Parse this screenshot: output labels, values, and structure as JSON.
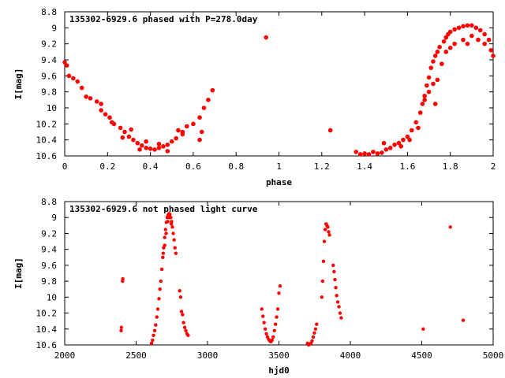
{
  "chart_data": [
    {
      "type": "scatter",
      "title": "135302-6929.6 phased with P=278.0day",
      "xlabel": "phase",
      "ylabel": "I[mag]",
      "xlim": [
        0,
        2
      ],
      "ylim": [
        8.8,
        10.6
      ],
      "y_inverted": true,
      "grid": false,
      "marker_color": "#ff0000",
      "marker": "filled-circle-cluster",
      "x_ticks": [
        0,
        0.2,
        0.4,
        0.6,
        0.8,
        1,
        1.2,
        1.4,
        1.6,
        1.8,
        2
      ],
      "x_tick_labels": [
        "0",
        "0.2",
        "0.4",
        "0.6",
        "0.8",
        "1",
        "1.2",
        "1.4",
        "1.6",
        "1.8",
        "2"
      ],
      "y_ticks": [
        8.8,
        9,
        9.2,
        9.4,
        9.6,
        9.8,
        10,
        10.2,
        10.4,
        10.6
      ],
      "y_tick_labels": [
        "8.8",
        "9",
        "9.2",
        "9.4",
        "9.6",
        "9.8",
        "10",
        "10.2",
        "10.4",
        "10.6"
      ],
      "points": [
        [
          0.0,
          9.43
        ],
        [
          0.01,
          9.47
        ],
        [
          0.02,
          9.6
        ],
        [
          0.04,
          9.63
        ],
        [
          0.06,
          9.67
        ],
        [
          0.08,
          9.75
        ],
        [
          0.1,
          9.86
        ],
        [
          0.12,
          9.88
        ],
        [
          0.15,
          9.92
        ],
        [
          0.17,
          10.03
        ],
        [
          0.19,
          10.08
        ],
        [
          0.21,
          10.12
        ],
        [
          0.23,
          10.2
        ],
        [
          0.26,
          10.25
        ],
        [
          0.28,
          10.3
        ],
        [
          0.3,
          10.36
        ],
        [
          0.32,
          10.4
        ],
        [
          0.34,
          10.44
        ],
        [
          0.36,
          10.47
        ],
        [
          0.38,
          10.5
        ],
        [
          0.4,
          10.51
        ],
        [
          0.42,
          10.52
        ],
        [
          0.44,
          10.5
        ],
        [
          0.46,
          10.48
        ],
        [
          0.48,
          10.46
        ],
        [
          0.5,
          10.42
        ],
        [
          0.52,
          10.38
        ],
        [
          0.55,
          10.3
        ],
        [
          0.57,
          10.23
        ],
        [
          0.6,
          10.2
        ],
        [
          0.63,
          10.12
        ],
        [
          0.65,
          10.0
        ],
        [
          0.67,
          9.9
        ],
        [
          0.69,
          9.78
        ],
        [
          0.17,
          9.95
        ],
        [
          0.22,
          10.18
        ],
        [
          0.31,
          10.27
        ],
        [
          0.27,
          10.37
        ],
        [
          0.35,
          10.52
        ],
        [
          0.44,
          10.45
        ],
        [
          0.53,
          10.28
        ],
        [
          0.55,
          10.33
        ],
        [
          0.64,
          10.3
        ],
        [
          0.63,
          10.4
        ],
        [
          0.38,
          10.42
        ],
        [
          0.48,
          10.54
        ],
        [
          0.94,
          9.12
        ],
        [
          1.24,
          10.28
        ],
        [
          1.36,
          10.55
        ],
        [
          1.38,
          10.58
        ],
        [
          1.4,
          10.57
        ],
        [
          1.42,
          10.58
        ],
        [
          1.44,
          10.55
        ],
        [
          1.46,
          10.57
        ],
        [
          1.48,
          10.56
        ],
        [
          1.49,
          10.44
        ],
        [
          1.5,
          10.52
        ],
        [
          1.52,
          10.5
        ],
        [
          1.54,
          10.46
        ],
        [
          1.56,
          10.44
        ],
        [
          1.58,
          10.4
        ],
        [
          1.6,
          10.36
        ],
        [
          1.62,
          10.28
        ],
        [
          1.64,
          10.18
        ],
        [
          1.66,
          10.06
        ],
        [
          1.67,
          9.95
        ],
        [
          1.68,
          9.85
        ],
        [
          1.69,
          9.72
        ],
        [
          1.7,
          9.62
        ],
        [
          1.71,
          9.5
        ],
        [
          1.72,
          9.42
        ],
        [
          1.73,
          9.35
        ],
        [
          1.74,
          9.3
        ],
        [
          1.75,
          9.24
        ],
        [
          1.77,
          9.17
        ],
        [
          1.78,
          9.12
        ],
        [
          1.79,
          9.08
        ],
        [
          1.8,
          9.05
        ],
        [
          1.82,
          9.02
        ],
        [
          1.84,
          9.0
        ],
        [
          1.86,
          8.98
        ],
        [
          1.88,
          8.97
        ],
        [
          1.9,
          8.97
        ],
        [
          1.92,
          9.0
        ],
        [
          1.94,
          9.03
        ],
        [
          1.96,
          9.08
        ],
        [
          1.98,
          9.15
        ],
        [
          2.0,
          9.35
        ],
        [
          1.68,
          9.9
        ],
        [
          1.7,
          9.8
        ],
        [
          1.72,
          9.7
        ],
        [
          1.73,
          9.95
        ],
        [
          1.74,
          9.65
        ],
        [
          1.76,
          9.45
        ],
        [
          1.78,
          9.3
        ],
        [
          1.8,
          9.25
        ],
        [
          1.82,
          9.2
        ],
        [
          1.86,
          9.15
        ],
        [
          1.88,
          9.2
        ],
        [
          1.9,
          9.1
        ],
        [
          1.93,
          9.15
        ],
        [
          1.96,
          9.2
        ],
        [
          1.99,
          9.28
        ],
        [
          1.57,
          10.48
        ],
        [
          1.61,
          10.4
        ],
        [
          1.65,
          10.25
        ]
      ]
    },
    {
      "type": "scatter",
      "title": "135302-6929.6 not phased light curve",
      "xlabel": "hjd0",
      "ylabel": "I[mag]",
      "xlim": [
        2000,
        5000
      ],
      "ylim": [
        8.8,
        10.6
      ],
      "y_inverted": true,
      "grid": false,
      "marker_color": "#ff0000",
      "marker": "filled-circle",
      "x_ticks": [
        2000,
        2500,
        3000,
        3500,
        4000,
        4500,
        5000
      ],
      "x_tick_labels": [
        "2000",
        "2500",
        "3000",
        "3500",
        "4000",
        "4500",
        "5000"
      ],
      "y_ticks": [
        8.8,
        9,
        9.2,
        9.4,
        9.6,
        9.8,
        10,
        10.2,
        10.4,
        10.6
      ],
      "y_tick_labels": [
        "8.8",
        "9",
        "9.2",
        "9.4",
        "9.6",
        "9.8",
        "10",
        "10.2",
        "10.4",
        "10.6"
      ],
      "points": [
        [
          2395,
          10.42
        ],
        [
          2397,
          10.38
        ],
        [
          2405,
          9.8
        ],
        [
          2407,
          9.77
        ],
        [
          2608,
          10.58
        ],
        [
          2615,
          10.54
        ],
        [
          2622,
          10.48
        ],
        [
          2630,
          10.42
        ],
        [
          2637,
          10.35
        ],
        [
          2645,
          10.25
        ],
        [
          2652,
          10.15
        ],
        [
          2660,
          10.02
        ],
        [
          2667,
          9.9
        ],
        [
          2673,
          9.8
        ],
        [
          2680,
          9.65
        ],
        [
          2687,
          9.5
        ],
        [
          2693,
          9.38
        ],
        [
          2700,
          9.25
        ],
        [
          2706,
          9.15
        ],
        [
          2712,
          9.06
        ],
        [
          2718,
          9.0
        ],
        [
          2724,
          8.97
        ],
        [
          2730,
          8.95
        ],
        [
          2736,
          8.96
        ],
        [
          2742,
          9.0
        ],
        [
          2748,
          9.05
        ],
        [
          2754,
          9.12
        ],
        [
          2760,
          9.2
        ],
        [
          2766,
          9.28
        ],
        [
          2772,
          9.38
        ],
        [
          2778,
          9.45
        ],
        [
          2690,
          9.45
        ],
        [
          2700,
          9.35
        ],
        [
          2710,
          9.2
        ],
        [
          2722,
          9.05
        ],
        [
          2735,
          9.0
        ],
        [
          2746,
          9.08
        ],
        [
          2805,
          9.92
        ],
        [
          2812,
          10.0
        ],
        [
          2818,
          10.18
        ],
        [
          2825,
          10.22
        ],
        [
          2832,
          10.32
        ],
        [
          2840,
          10.38
        ],
        [
          2848,
          10.42
        ],
        [
          2856,
          10.46
        ],
        [
          2864,
          10.48
        ],
        [
          3380,
          10.15
        ],
        [
          3388,
          10.24
        ],
        [
          3396,
          10.32
        ],
        [
          3404,
          10.4
        ],
        [
          3412,
          10.46
        ],
        [
          3420,
          10.5
        ],
        [
          3428,
          10.53
        ],
        [
          3436,
          10.55
        ],
        [
          3444,
          10.56
        ],
        [
          3452,
          10.54
        ],
        [
          3460,
          10.5
        ],
        [
          3468,
          10.42
        ],
        [
          3476,
          10.34
        ],
        [
          3484,
          10.25
        ],
        [
          3492,
          10.15
        ],
        [
          3500,
          9.95
        ],
        [
          3508,
          9.86
        ],
        [
          3700,
          10.58
        ],
        [
          3708,
          10.6
        ],
        [
          3716,
          10.59
        ],
        [
          3724,
          10.58
        ],
        [
          3732,
          10.55
        ],
        [
          3740,
          10.5
        ],
        [
          3748,
          10.45
        ],
        [
          3756,
          10.4
        ],
        [
          3764,
          10.34
        ],
        [
          3800,
          10.0
        ],
        [
          3806,
          9.8
        ],
        [
          3812,
          9.55
        ],
        [
          3818,
          9.3
        ],
        [
          3824,
          9.15
        ],
        [
          3830,
          9.08
        ],
        [
          3836,
          9.1
        ],
        [
          3842,
          9.12
        ],
        [
          3848,
          9.18
        ],
        [
          3854,
          9.22
        ],
        [
          3880,
          9.6
        ],
        [
          3886,
          9.68
        ],
        [
          3892,
          9.78
        ],
        [
          3898,
          9.88
        ],
        [
          3904,
          9.98
        ],
        [
          3912,
          10.06
        ],
        [
          3920,
          10.12
        ],
        [
          3928,
          10.2
        ],
        [
          3936,
          10.26
        ],
        [
          4510,
          10.4
        ],
        [
          4700,
          9.12
        ],
        [
          4790,
          10.29
        ]
      ]
    }
  ]
}
